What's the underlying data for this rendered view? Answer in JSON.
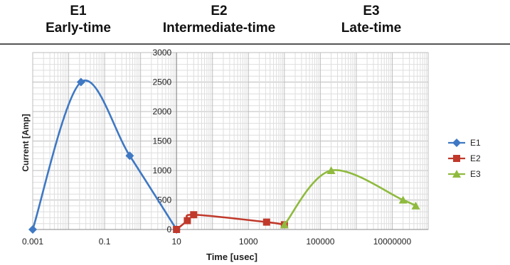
{
  "headers": [
    {
      "code": "E1",
      "name": "Early-time"
    },
    {
      "code": "E2",
      "name": "Intermediate-time"
    },
    {
      "code": "E3",
      "name": "Late-time"
    }
  ],
  "colors": {
    "E1": "#3f78c3",
    "E2": "#c0392b",
    "E3": "#8fba3e",
    "grid": "#c8c8c8",
    "rule": "#555555"
  },
  "chart_data": {
    "type": "line",
    "xscale": "log",
    "xlabel": "Time [usec]",
    "ylabel": "Current [Amp]",
    "xlim": [
      0.001,
      100000000
    ],
    "ylim": [
      0,
      3000
    ],
    "xticks": [
      0.001,
      0.1,
      10,
      1000,
      100000,
      10000000
    ],
    "xtick_labels": [
      "0.001",
      "0.1",
      "10",
      "1000",
      "100000",
      "10000000"
    ],
    "yticks": [
      0,
      500,
      1000,
      1500,
      2000,
      2500,
      3000
    ],
    "ytick_labels": [
      "0",
      "500",
      "1000",
      "1500",
      "2000",
      "2500",
      "3000"
    ],
    "grid": true,
    "legend": "right",
    "series": [
      {
        "name": "E1",
        "marker": "diamond",
        "x": [
          0.001,
          0.022,
          0.5,
          10
        ],
        "y": [
          0,
          2500,
          1250,
          0
        ]
      },
      {
        "name": "E2",
        "marker": "square",
        "x": [
          10,
          20,
          30,
          3200,
          10000
        ],
        "y": [
          0,
          150,
          250,
          125,
          80
        ]
      },
      {
        "name": "E3",
        "marker": "triangle",
        "x": [
          10000,
          200000,
          20000000,
          45000000
        ],
        "y": [
          80,
          1000,
          500,
          400
        ]
      }
    ]
  }
}
